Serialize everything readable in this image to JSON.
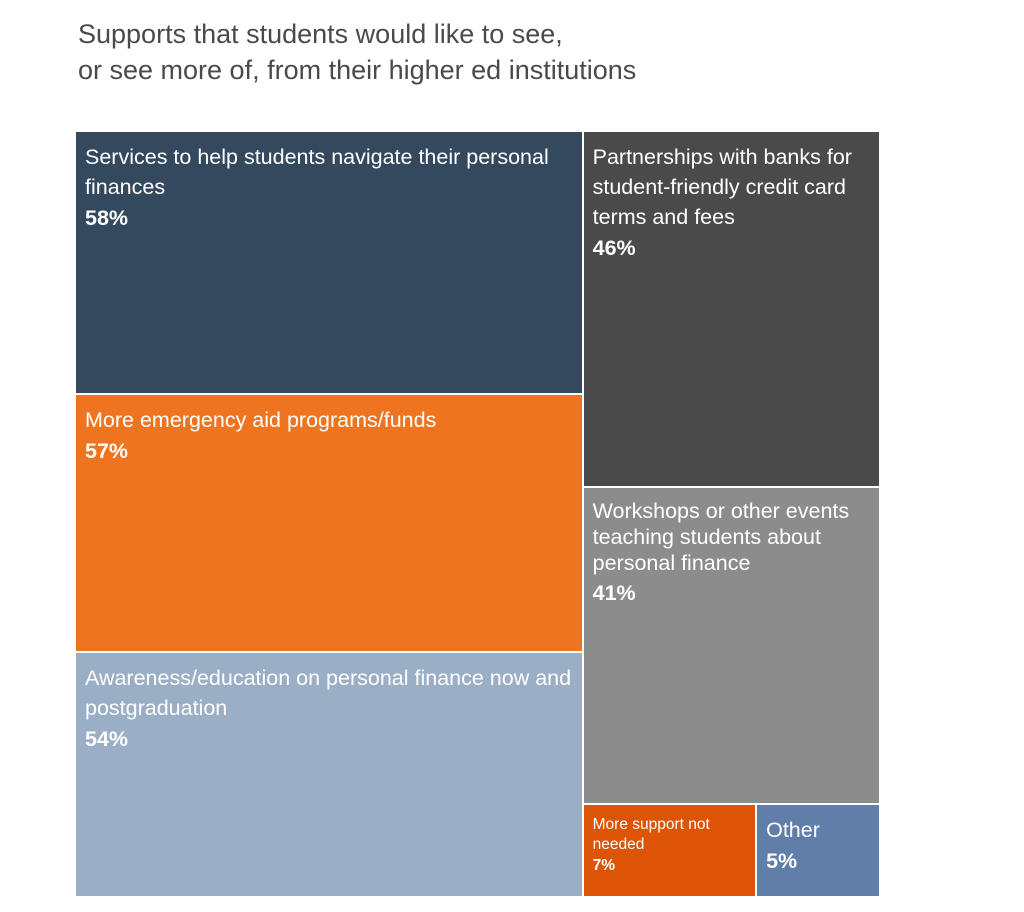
{
  "title_lines": [
    "Supports that students would like to see,",
    "or see more of, from their higher ed institutions"
  ],
  "chart_data": {
    "type": "treemap",
    "title": "Supports that students would like to see, or see more of, from their higher ed institutions",
    "unit": "%",
    "items": [
      {
        "label": "Services to help students navigate their personal finances",
        "value": 58,
        "value_label": "58%",
        "color": "#34485e"
      },
      {
        "label": "More emergency aid programs/funds",
        "value": 57,
        "value_label": "57%",
        "color": "#ee7420"
      },
      {
        "label": "Awareness/education on personal finance now and postgraduation",
        "value": 54,
        "value_label": "54%",
        "color": "#9aafc6"
      },
      {
        "label": "Partnerships with banks for student-friendly credit card terms and fees",
        "value": 46,
        "value_label": "46%",
        "color": "#4a4a4a"
      },
      {
        "label": "Workshops or other events teaching students about personal finance",
        "value": 41,
        "value_label": "41%",
        "color": "#8c8c8c"
      },
      {
        "label": "More support not needed",
        "value": 7,
        "value_label": "7%",
        "color": "#dd5406"
      },
      {
        "label": "Other",
        "value": 5,
        "value_label": "5%",
        "color": "#617ea8"
      }
    ]
  }
}
